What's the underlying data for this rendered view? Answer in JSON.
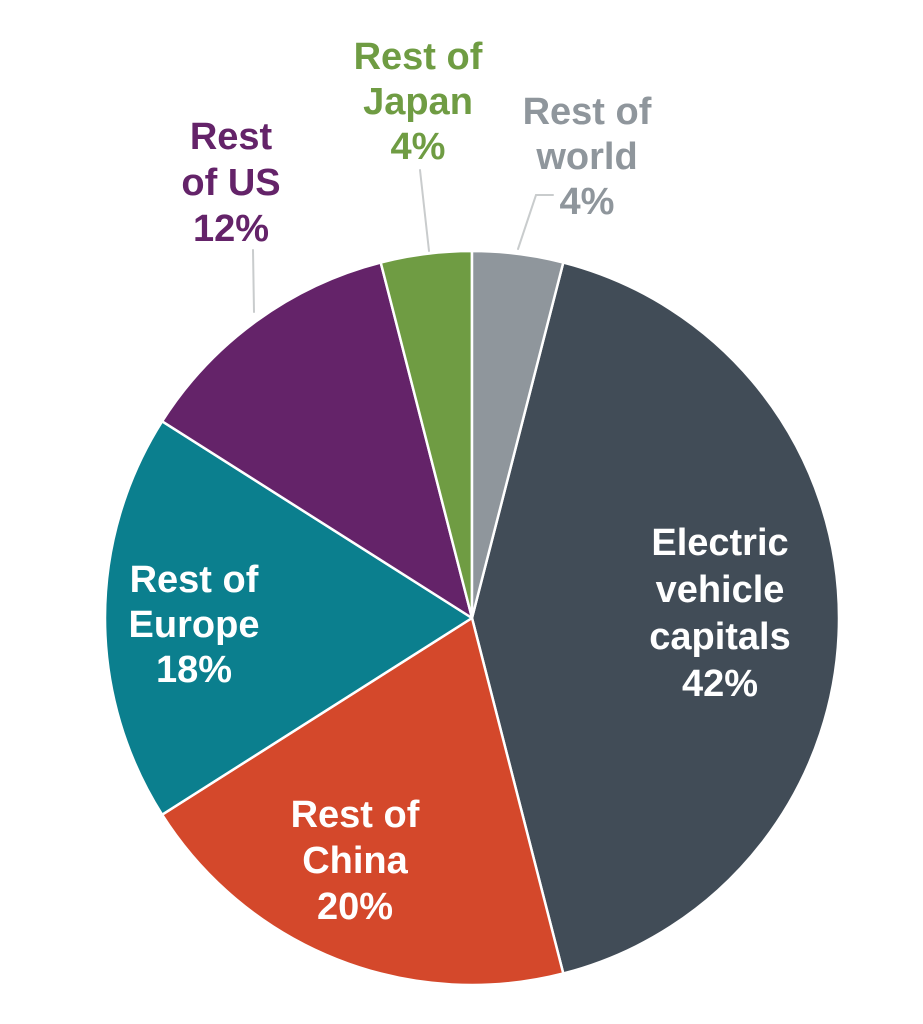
{
  "page": {
    "background_color": "#ffffff"
  },
  "chart_data": {
    "type": "pie",
    "title": "",
    "start_angle_deg": 14.4,
    "direction": "clockwise",
    "slice_stroke_color": "#ffffff",
    "leader_line_color": "#c9cccd",
    "total": 100,
    "segments": [
      {
        "id": "electric-vehicle-capitals",
        "label": "Electric vehicle capitals",
        "value": 42,
        "pct_label": "42%",
        "color": "#414c57",
        "label_color": "#ffffff",
        "label_placement": "inside",
        "label_lines": [
          "Electric",
          "vehicle",
          "capitals",
          "42%"
        ]
      },
      {
        "id": "rest-of-china",
        "label": "Rest of China",
        "value": 20,
        "pct_label": "20%",
        "color": "#d4482b",
        "label_color": "#ffffff",
        "label_placement": "inside",
        "label_lines": [
          "Rest of",
          "China",
          "20%"
        ]
      },
      {
        "id": "rest-of-europe",
        "label": "Rest of Europe",
        "value": 18,
        "pct_label": "18%",
        "color": "#0b7f8e",
        "label_color": "#ffffff",
        "label_placement": "inside",
        "label_lines": [
          "Rest of",
          "Europe",
          "18%"
        ]
      },
      {
        "id": "rest-of-us",
        "label": "Rest of US",
        "value": 12,
        "pct_label": "12%",
        "color": "#642369",
        "label_color": "#642369",
        "label_placement": "outside",
        "label_lines": [
          "Rest",
          "of US",
          "12%"
        ]
      },
      {
        "id": "rest-of-japan",
        "label": "Rest of Japan",
        "value": 4,
        "pct_label": "4%",
        "color": "#6f9c43",
        "label_color": "#6f9c43",
        "label_placement": "outside",
        "label_lines": [
          "Rest of",
          "Japan",
          "4%"
        ]
      },
      {
        "id": "rest-of-world",
        "label": "Rest of world",
        "value": 4,
        "pct_label": "4%",
        "color": "#8f969c",
        "label_color": "#8f969c",
        "label_placement": "outside",
        "label_lines": [
          "Rest of",
          "world",
          "4%"
        ]
      }
    ]
  }
}
